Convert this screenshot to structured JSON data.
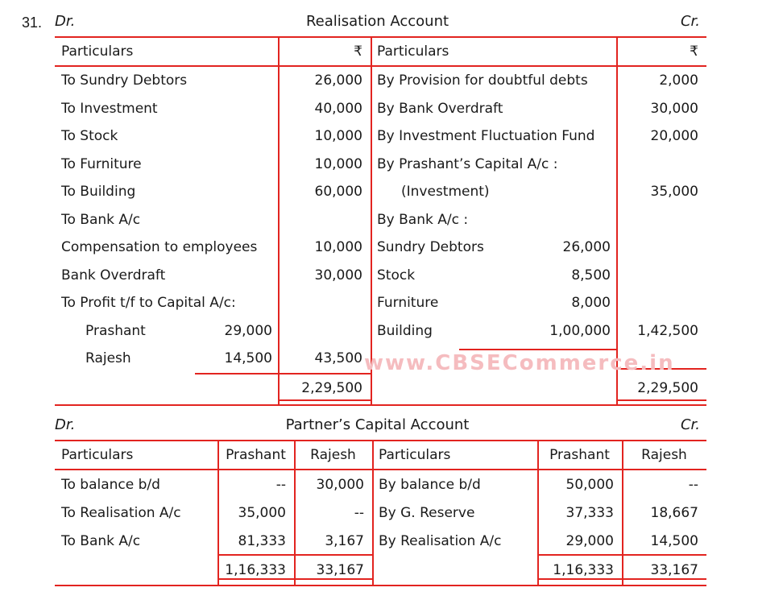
{
  "colors": {
    "rule_red": "#e22420",
    "text": "#1a1a1a",
    "watermark_pink": "#f5bcbf"
  },
  "question_number": "31.",
  "watermark": "www.CBSECommerce.in",
  "realisation": {
    "dr_label": "Dr.",
    "cr_label": "Cr.",
    "title": "Realisation Account",
    "headers": {
      "particulars": "Particulars",
      "amount": "₹"
    },
    "left_rows": [
      {
        "label": "To Sundry Debtors",
        "inner": "",
        "amount": "26,000"
      },
      {
        "label": "To Investment",
        "inner": "",
        "amount": "40,000"
      },
      {
        "label": "To Stock",
        "inner": "",
        "amount": "10,000"
      },
      {
        "label": "To Furniture",
        "inner": "",
        "amount": "10,000"
      },
      {
        "label": "To Building",
        "inner": "",
        "amount": "60,000"
      },
      {
        "label": "To Bank A/c",
        "inner": "",
        "amount": ""
      },
      {
        "label": "Compensation to employees",
        "inner": "",
        "amount": "10,000"
      },
      {
        "label": "Bank Overdraft",
        "inner": "",
        "amount": "30,000"
      },
      {
        "label": "To Profit t/f to Capital A/c:",
        "inner": "",
        "amount": ""
      },
      {
        "label": "Prashant",
        "indent": true,
        "inner": "29,000",
        "amount": ""
      },
      {
        "label": "Rajesh",
        "indent": true,
        "inner": "14,500",
        "amount": "43,500"
      }
    ],
    "right_rows": [
      {
        "label": "By Provision for doubtful debts",
        "inner": "",
        "amount": "2,000"
      },
      {
        "label": "By Bank Overdraft",
        "inner": "",
        "amount": "30,000"
      },
      {
        "label": "By Investment Fluctuation Fund",
        "inner": "",
        "amount": "20,000"
      },
      {
        "label": "By Prashant’s Capital A/c :",
        "inner": "",
        "amount": ""
      },
      {
        "label": "(Investment)",
        "indent": true,
        "inner": "",
        "amount": "35,000"
      },
      {
        "label": "By Bank A/c :",
        "inner": "",
        "amount": ""
      },
      {
        "label": "Sundry Debtors",
        "inner": "26,000",
        "amount": ""
      },
      {
        "label": "Stock",
        "inner": "8,500",
        "amount": ""
      },
      {
        "label": "Furniture",
        "inner": "8,000",
        "amount": ""
      },
      {
        "label": "Building",
        "inner": "1,00,000",
        "amount": "1,42,500"
      },
      {
        "label": "",
        "inner": "",
        "amount": ""
      }
    ],
    "left_total": "2,29,500",
    "right_total": "2,29,500"
  },
  "capital": {
    "dr_label": "Dr.",
    "cr_label": "Cr.",
    "title": "Partner’s Capital Account",
    "headers": {
      "particulars": "Particulars",
      "prashant": "Prashant",
      "rajesh": "Rajesh"
    },
    "left_rows": [
      {
        "label": "To balance b/d",
        "prashant": "--",
        "rajesh": "30,000"
      },
      {
        "label": "To Realisation A/c",
        "prashant": "35,000",
        "rajesh": "--"
      },
      {
        "label": "To Bank A/c",
        "prashant": "81,333",
        "rajesh": "3,167"
      }
    ],
    "right_rows": [
      {
        "label": "By balance b/d",
        "prashant": "50,000",
        "rajesh": "--"
      },
      {
        "label": "By G. Reserve",
        "prashant": "37,333",
        "rajesh": "18,667"
      },
      {
        "label": "By Realisation A/c",
        "prashant": "29,000",
        "rajesh": "14,500"
      }
    ],
    "left_totals": {
      "prashant": "1,16,333",
      "rajesh": "33,167"
    },
    "right_totals": {
      "prashant": "1,16,333",
      "rajesh": "33,167"
    }
  }
}
